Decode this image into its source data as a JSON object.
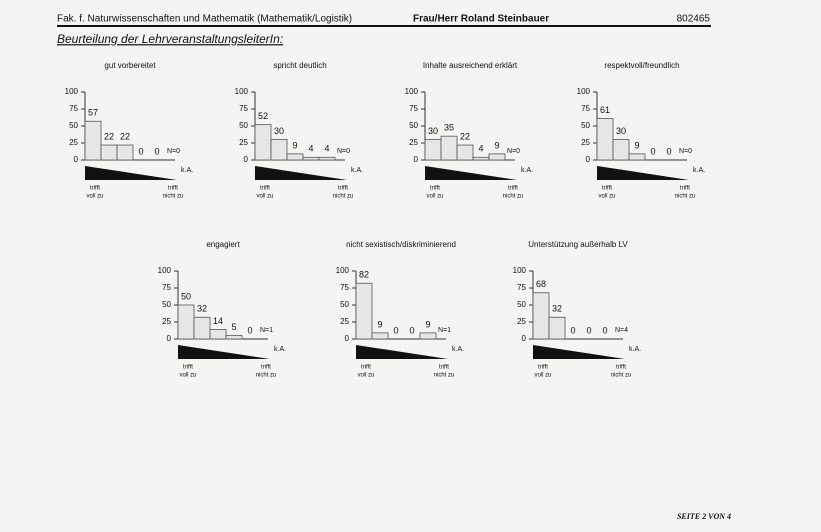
{
  "header": {
    "faculty": "Fak. f. Naturwissenschaften und Mathematik (Mathematik/Logistik)",
    "person": "Frau/Herr Roland Steinbauer",
    "number": "802465",
    "section": "Beurteilung der LehrveranstaltungsleiterIn:",
    "footer": "SEITE 2 VON 4"
  },
  "chart_data": [
    {
      "type": "bar",
      "title": "gut vorbereitet",
      "categories": [
        null,
        null,
        null,
        null,
        null
      ],
      "values": [
        57,
        22,
        22,
        0,
        0
      ],
      "na_label": "N=0",
      "na_category": "k.A.",
      "scale_left": [
        "trifft",
        "voll zu"
      ],
      "scale_right": [
        "trifft",
        "nicht zu"
      ],
      "ylim": [
        0,
        100
      ],
      "yticks": [
        0,
        25,
        50,
        75,
        100
      ],
      "color": "#e6e6e6"
    },
    {
      "type": "bar",
      "title": "spricht deutlich",
      "categories": [
        null,
        null,
        null,
        null,
        null
      ],
      "values": [
        52,
        30,
        9,
        4,
        4
      ],
      "na_label": "N=0",
      "na_category": "k.A.",
      "scale_left": [
        "trifft",
        "voll zu"
      ],
      "scale_right": [
        "trifft",
        "nicht zu"
      ],
      "ylim": [
        0,
        100
      ],
      "yticks": [
        0,
        25,
        50,
        75,
        100
      ],
      "color": "#e6e6e6"
    },
    {
      "type": "bar",
      "title": "Inhalte ausreichend erklärt",
      "categories": [
        null,
        null,
        null,
        null,
        null
      ],
      "values": [
        30,
        35,
        22,
        4,
        9
      ],
      "na_label": "N=0",
      "na_category": "k.A.",
      "scale_left": [
        "trifft",
        "voll zu"
      ],
      "scale_right": [
        "trifft",
        "nicht zu"
      ],
      "ylim": [
        0,
        100
      ],
      "yticks": [
        0,
        25,
        50,
        75,
        100
      ],
      "color": "#e6e6e6"
    },
    {
      "type": "bar",
      "title": "respektvoll/freundlich",
      "categories": [
        null,
        null,
        null,
        null,
        null
      ],
      "values": [
        61,
        30,
        9,
        0,
        0
      ],
      "na_label": "N=0",
      "na_category": "k.A.",
      "scale_left": [
        "trifft",
        "voll zu"
      ],
      "scale_right": [
        "trifft",
        "nicht zu"
      ],
      "ylim": [
        0,
        100
      ],
      "yticks": [
        0,
        25,
        50,
        75,
        100
      ],
      "color": "#e6e6e6"
    },
    {
      "type": "bar",
      "title": "engagiert",
      "categories": [
        null,
        null,
        null,
        null,
        null
      ],
      "values": [
        50,
        32,
        14,
        5,
        0
      ],
      "na_label": "N=1",
      "na_category": "k.A.",
      "scale_left": [
        "trifft",
        "voll zu"
      ],
      "scale_right": [
        "trifft",
        "nicht zu"
      ],
      "ylim": [
        0,
        100
      ],
      "yticks": [
        0,
        25,
        50,
        75,
        100
      ],
      "color": "#e6e6e6"
    },
    {
      "type": "bar",
      "title": "nicht sexistisch/diskriminierend",
      "categories": [
        null,
        null,
        null,
        null,
        null
      ],
      "values": [
        82,
        9,
        0,
        0,
        9
      ],
      "na_label": "N=1",
      "na_category": "k.A.",
      "scale_left": [
        "trifft",
        "voll zu"
      ],
      "scale_right": [
        "trifft",
        "nicht zu"
      ],
      "ylim": [
        0,
        100
      ],
      "yticks": [
        0,
        25,
        50,
        75,
        100
      ],
      "color": "#e6e6e6"
    },
    {
      "type": "bar",
      "title": "Unterstützung außerhalb LV",
      "categories": [
        null,
        null,
        null,
        null,
        null
      ],
      "values": [
        68,
        32,
        0,
        0,
        0
      ],
      "na_label": "N=4",
      "na_category": "k.A.",
      "scale_left": [
        "trifft",
        "voll zu"
      ],
      "scale_right": [
        "trifft",
        "nicht zu"
      ],
      "ylim": [
        0,
        100
      ],
      "yticks": [
        0,
        25,
        50,
        75,
        100
      ],
      "color": "#e6e6e6"
    }
  ]
}
